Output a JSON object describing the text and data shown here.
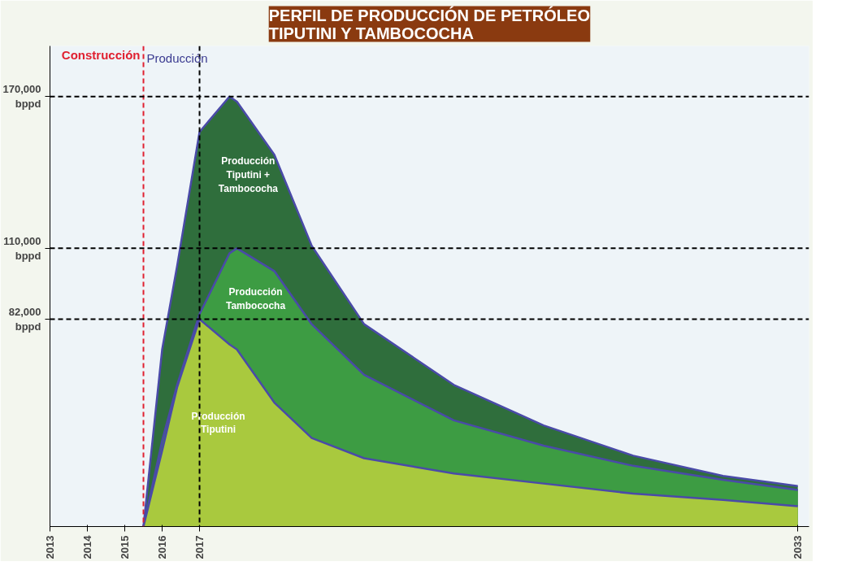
{
  "chart_data": {
    "type": "area",
    "title": "PERFIL DE PRODUCCIÓN DE PETRÓLEO\nTIPUTINI Y TAMBOCOCHA",
    "x": [
      2015.5,
      2016,
      2016.4,
      2017,
      2017.8,
      2018,
      2019,
      2020,
      2021.4,
      2023.8,
      2026.2,
      2028.6,
      2031,
      2033
    ],
    "series": [
      {
        "name": "Producción Tiputini + Tambococha",
        "color": "#2f6e3c",
        "values": [
          0,
          70000,
          103000,
          156000,
          170000,
          168000,
          147000,
          111000,
          80000,
          56000,
          40000,
          28000,
          20000,
          16000
        ]
      },
      {
        "name": "Producción Tambococha",
        "color": "#3d9c43",
        "values": [
          0,
          34000,
          56000,
          84000,
          108000,
          110000,
          101000,
          80000,
          60000,
          42000,
          32000,
          24000,
          18500,
          14500
        ]
      },
      {
        "name": "Producción Tiputini",
        "color": "#a9c93e",
        "values": [
          0,
          30000,
          55000,
          82000,
          72000,
          70000,
          49000,
          35000,
          27000,
          21000,
          17000,
          13000,
          10500,
          8000
        ]
      }
    ],
    "xlim": [
      2013,
      2033.3
    ],
    "xticks": [
      2013,
      2014,
      2015,
      2016,
      2017,
      2033
    ],
    "ylim": [
      0,
      190000
    ],
    "yticks": [
      {
        "value": 82000,
        "label": "82,000\nbppd"
      },
      {
        "value": 110000,
        "label": "110,000\nbppd"
      },
      {
        "value": 170000,
        "label": "170,000\nbppd"
      }
    ],
    "ref_lines": [
      {
        "axis": "x",
        "value": 2015.5,
        "label": "Construcción",
        "color": "#e02030",
        "line_style": "dashed"
      },
      {
        "axis": "x",
        "value": 2017,
        "label": null,
        "color": "#000000",
        "line_style": "dashed"
      },
      {
        "axis": "y",
        "value": 170000,
        "label": null,
        "color": "#000000",
        "line_style": "dashed"
      },
      {
        "axis": "y",
        "value": 110000,
        "label": null,
        "color": "#000000",
        "line_style": "dashed"
      },
      {
        "axis": "y",
        "value": 82000,
        "label": null,
        "color": "#000000",
        "line_style": "dashed"
      }
    ],
    "annotations": [
      {
        "text": "Producción",
        "x": 2015.5,
        "y": 188000
      }
    ],
    "grid": false
  }
}
